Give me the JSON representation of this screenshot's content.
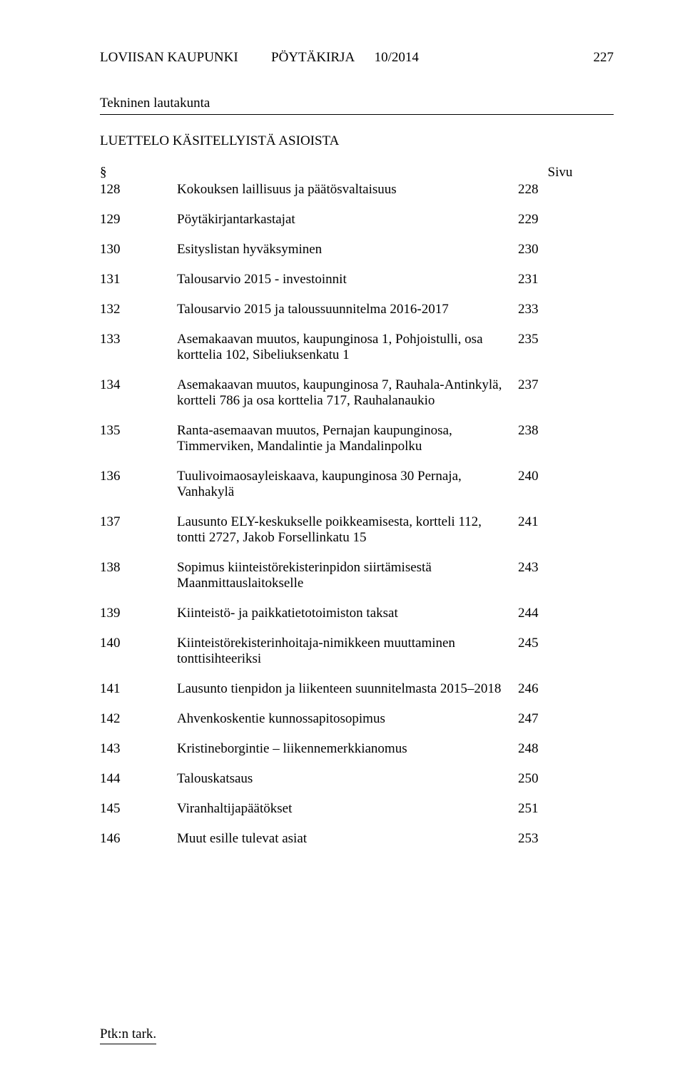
{
  "header": {
    "org": "LOVIISAN KAUPUNKI",
    "doc_type": "PÖYTÄKIRJA",
    "doc_num": "10/2014",
    "page_num": "227"
  },
  "committee": "Tekninen lautakunta",
  "list_title": "LUETTELO KÄSITELLYISTÄ  ASIOISTA",
  "section_symbol": "§",
  "page_label": "Sivu",
  "entries": [
    {
      "num": "128",
      "title": "Kokouksen laillisuus ja päätösvaltaisuus",
      "page": "228"
    },
    {
      "num": "129",
      "title": "Pöytäkirjantarkastajat",
      "page": "229"
    },
    {
      "num": "130",
      "title": "Esityslistan hyväksyminen",
      "page": "230"
    },
    {
      "num": "131",
      "title": "Talousarvio 2015 - investoinnit",
      "page": "231"
    },
    {
      "num": "132",
      "title": "Talousarvio 2015 ja taloussuunnitelma 2016-2017",
      "page": "233"
    },
    {
      "num": "133",
      "title": "Asemakaavan muutos, kaupunginosa 1, Pohjoistulli, osa korttelia 102, Sibeliuksenkatu 1",
      "page": "235"
    },
    {
      "num": "134",
      "title": "Asemakaavan muutos, kaupunginosa 7, Rauhala-Antinkylä, kortteli 786 ja osa korttelia 717, Rauhalanaukio",
      "page": "237"
    },
    {
      "num": "135",
      "title": "Ranta-asemaavan muutos, Pernajan kaupunginosa, Timmerviken, Mandalintie ja Mandalinpolku",
      "page": "238"
    },
    {
      "num": "136",
      "title": "Tuulivoimaosayleiskaava, kaupunginosa 30 Pernaja, Vanhakylä",
      "page": "240"
    },
    {
      "num": "137",
      "title": "Lausunto ELY-keskukselle poikkeamisesta, kortteli 112, tontti 2727, Jakob Forsellinkatu 15",
      "page": "241"
    },
    {
      "num": "138",
      "title": "Sopimus kiinteistörekisterinpidon siirtämisestä Maanmittauslaitokselle",
      "page": "243"
    },
    {
      "num": "139",
      "title": "Kiinteistö- ja paikkatietotoimiston taksat",
      "page": "244"
    },
    {
      "num": "140",
      "title": "Kiinteistörekisterinhoitaja-nimikkeen muuttaminen tonttisihteeriksi",
      "page": "245"
    },
    {
      "num": "141",
      "title": "Lausunto tienpidon ja liikenteen suunnitelmasta 2015–2018",
      "page": "246"
    },
    {
      "num": "142",
      "title": "Ahvenkoskentie kunnossapitosopimus",
      "page": "247"
    },
    {
      "num": "143",
      "title": "Kristineborgintie – liikennemerkkianomus",
      "page": "248"
    },
    {
      "num": "144",
      "title": "Talouskatsaus",
      "page": "250"
    },
    {
      "num": "145",
      "title": "Viranhaltijapäätökset",
      "page": "251"
    },
    {
      "num": "146",
      "title": "Muut esille tulevat asiat",
      "page": "253"
    }
  ],
  "footer": "Ptk:n tark."
}
